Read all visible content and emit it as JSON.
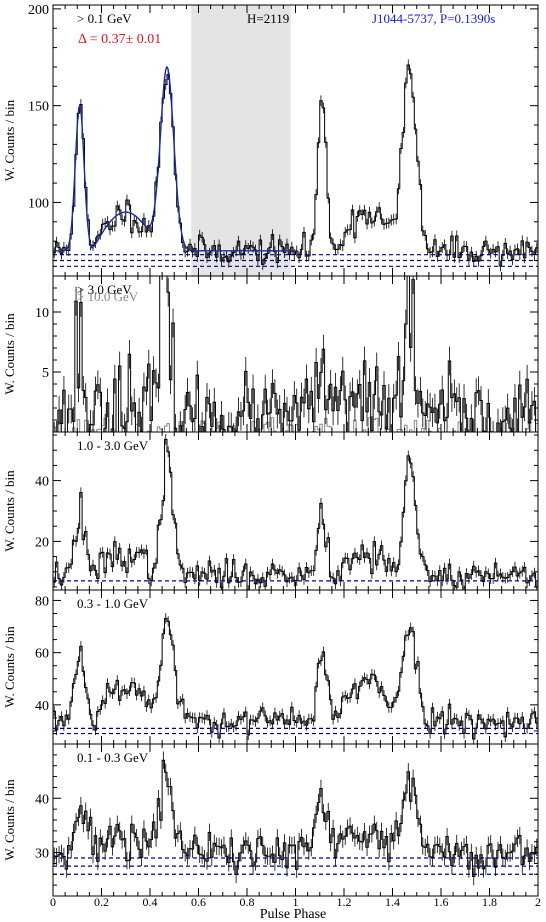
{
  "chart_data": {
    "type": "line",
    "x_axis_label": "Pulse Phase",
    "y_axis_label": "W. Counts / bin",
    "x_range": [
      0,
      2
    ],
    "x_ticks": [
      "0",
      "0.2",
      "0.4",
      "0.6",
      "0.8",
      "1",
      "1.2",
      "1.4",
      "1.6",
      "1.8",
      "2"
    ],
    "colors": {
      "data": "#000000",
      "model": "#1a2a9c",
      "background": "#000080",
      "hilite": "#e4e4e4",
      "secondary": "#888888"
    },
    "panels": [
      {
        "label": "> 0.1 GeV",
        "ylim": [
          62,
          202
        ],
        "yticks": [
          100,
          150,
          200
        ],
        "annotations": {
          "delta": "Δ = 0.37± 0.01",
          "h_test": "H=2119",
          "pulsar": "J1044-5737, P=0.1390s"
        },
        "offpulse_region": [
          0.57,
          0.98
        ],
        "background_levels": [
          67,
          70,
          73
        ],
        "shape": {
          "base": 75,
          "peaks": [
            [
              0.11,
              75,
              0.018
            ],
            [
              0.47,
              95,
              0.028
            ]
          ],
          "bridge": [
            [
              0.16,
              0.44,
              20
            ]
          ],
          "noise": 3.5,
          "seed": 11
        }
      },
      {
        "label": "> 3.0 GeV",
        "secondary_label": "> 10.0 GeV",
        "ylim": [
          0,
          13
        ],
        "yticks": [
          5,
          10
        ],
        "shape": {
          "base": 1.3,
          "peaks": [
            [
              0.11,
              8,
              0.014
            ],
            [
              0.46,
              10,
              0.022
            ]
          ],
          "bridge": [
            [
              0.16,
              0.42,
              1.2
            ]
          ],
          "noise": 1.5,
          "seed": 23
        }
      },
      {
        "label": "1.0 - 3.0 GeV",
        "ylim": [
          4,
          56
        ],
        "yticks": [
          20,
          40
        ],
        "background_levels": [
          7
        ],
        "shape": {
          "base": 9,
          "peaks": [
            [
              0.11,
              22,
              0.018
            ],
            [
              0.47,
              35,
              0.025
            ]
          ],
          "bridge": [
            [
              0.16,
              0.43,
              7
            ]
          ],
          "noise": 2.2,
          "seed": 37
        }
      },
      {
        "label": "0.3 - 1.0 GeV",
        "ylim": [
          25,
          84
        ],
        "yticks": [
          40,
          60,
          80
        ],
        "background_levels": [
          29,
          31
        ],
        "shape": {
          "base": 34,
          "peaks": [
            [
              0.11,
              28,
              0.02
            ],
            [
              0.47,
              38,
              0.028
            ]
          ],
          "bridge": [
            [
              0.16,
              0.43,
              14
            ]
          ],
          "noise": 2.5,
          "seed": 53
        }
      },
      {
        "label": "0.1 - 0.3 GeV",
        "ylim": [
          22,
          50
        ],
        "yticks": [
          30,
          40
        ],
        "background_levels": [
          26,
          27.5,
          29
        ],
        "shape": {
          "base": 30,
          "peaks": [
            [
              0.11,
              9,
              0.025
            ],
            [
              0.47,
              13,
              0.03
            ]
          ],
          "bridge": [
            [
              0.16,
              0.43,
              3
            ]
          ],
          "noise": 2.0,
          "seed": 71
        }
      }
    ]
  }
}
